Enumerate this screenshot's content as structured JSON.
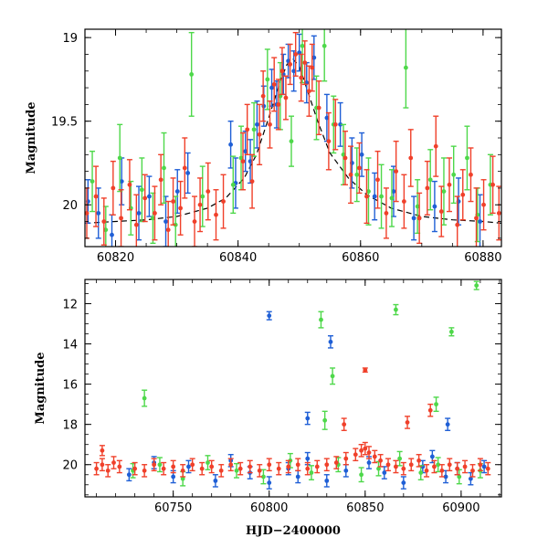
{
  "colors": {
    "blue": "#1f5fd6",
    "red": "#f0402a",
    "green": "#4ed84a",
    "model": "#000000"
  },
  "chart_data": [
    {
      "type": "scatter",
      "title": "",
      "xlabel": "",
      "ylabel": "Magnitude",
      "xlim": [
        60815,
        60883
      ],
      "ylim": [
        20.25,
        18.95
      ],
      "y_inverted": true,
      "xticks": [
        "60820",
        "60840",
        "60860",
        "60880"
      ],
      "yticks": [
        "19",
        "19.5",
        "20"
      ],
      "model_curve": {
        "style": "dashed",
        "x": [
          60815,
          60820,
          60825,
          60830,
          60835,
          60838,
          60841,
          60843,
          60845,
          60847,
          60848,
          60849,
          60850,
          60851,
          60853,
          60855,
          60858,
          60861,
          60865,
          60870,
          60875,
          60880,
          60883
        ],
        "y": [
          20.11,
          20.1,
          20.09,
          20.07,
          20.02,
          19.96,
          19.84,
          19.7,
          19.48,
          19.25,
          19.16,
          19.13,
          19.17,
          19.28,
          19.5,
          19.69,
          19.84,
          19.94,
          20.02,
          20.07,
          20.09,
          20.1,
          20.11
        ]
      },
      "series": [
        {
          "color": "blue",
          "x": [
            60815.5,
            60817.2,
            60819.4,
            60821.0,
            60823.8,
            60825.5,
            60828.2,
            60830.1,
            60831.8,
            60838.8,
            60839.6,
            60841.2,
            60842.0,
            60843.1,
            60844.2,
            60845.5,
            60846.3,
            60847.4,
            60848.2,
            60849.1,
            60850.0,
            60851.2,
            60852.4,
            60854.5,
            60856.7,
            60858.6,
            60860.2,
            60862.3,
            60865.4,
            60868.7,
            60872.1,
            60876.0,
            60879.5
          ],
          "y": [
            19.98,
            20.05,
            20.18,
            19.86,
            20.05,
            19.95,
            20.1,
            19.92,
            19.81,
            19.64,
            19.87,
            19.68,
            19.74,
            19.52,
            19.41,
            19.3,
            19.4,
            19.22,
            19.14,
            19.2,
            19.09,
            19.27,
            19.12,
            19.48,
            19.52,
            19.75,
            19.7,
            19.95,
            19.92,
            20.08,
            20.01,
            19.98,
            20.1
          ],
          "err": [
            0.13,
            0.15,
            0.12,
            0.14,
            0.16,
            0.12,
            0.15,
            0.13,
            0.12,
            0.14,
            0.15,
            0.12,
            0.13,
            0.14,
            0.12,
            0.11,
            0.14,
            0.12,
            0.1,
            0.12,
            0.11,
            0.12,
            0.13,
            0.14,
            0.13,
            0.15,
            0.13,
            0.14,
            0.15,
            0.13,
            0.15,
            0.14,
            0.16
          ]
        },
        {
          "color": "green",
          "x": [
            60816.2,
            60818.4,
            60820.7,
            60822.5,
            60824.3,
            60826.1,
            60827.9,
            60829.8,
            60832.4,
            60834.2,
            60839.2,
            60840.5,
            60842.6,
            60844.8,
            60846.9,
            60848.7,
            60850.5,
            60852.8,
            60854.1,
            60855.6,
            60857.2,
            60859.4,
            60861.3,
            60863.4,
            60865.1,
            60867.4,
            60869.3,
            60871.4,
            60873.6,
            60875.2,
            60877.4,
            60879.1,
            60881.2
          ],
          "y": [
            19.86,
            20.15,
            19.72,
            20.02,
            19.91,
            20.08,
            19.78,
            20.12,
            19.22,
            19.95,
            19.88,
            19.72,
            19.55,
            19.25,
            19.35,
            19.62,
            19.05,
            19.42,
            19.05,
            19.52,
            19.7,
            19.82,
            19.92,
            19.95,
            19.96,
            19.18,
            20.01,
            19.85,
            19.92,
            19.82,
            19.72,
            20.06,
            19.88
          ],
          "err": [
            0.18,
            0.14,
            0.2,
            0.16,
            0.19,
            0.15,
            0.21,
            0.17,
            0.25,
            0.18,
            0.17,
            0.19,
            0.16,
            0.18,
            0.2,
            0.15,
            0.22,
            0.19,
            0.21,
            0.17,
            0.18,
            0.16,
            0.2,
            0.19,
            0.17,
            0.24,
            0.16,
            0.18,
            0.2,
            0.17,
            0.19,
            0.16,
            0.18
          ]
        },
        {
          "color": "red",
          "x": [
            60815.3,
            60816.8,
            60818.1,
            60819.6,
            60820.9,
            60822.3,
            60823.4,
            60824.8,
            60826.4,
            60827.4,
            60828.6,
            60829.4,
            60830.6,
            60831.3,
            60832.9,
            60833.8,
            60835.1,
            60836.4,
            60837.6,
            60840.8,
            60841.5,
            60842.3,
            60843.5,
            60844.1,
            60845.2,
            60845.9,
            60846.6,
            60847.2,
            60847.8,
            60848.5,
            60849.4,
            60850.3,
            60850.9,
            60851.6,
            60852.1,
            60853.2,
            60854.8,
            60855.9,
            60857.5,
            60858.4,
            60859.8,
            60861.0,
            60862.8,
            60864.2,
            60865.8,
            60867.1,
            60868.2,
            60869.6,
            60870.9,
            60872.3,
            60873.2,
            60874.5,
            60875.8,
            60876.7,
            60878.0,
            60878.9,
            60880.1,
            60881.6,
            60882.6
          ],
          "y": [
            20.05,
            19.95,
            20.1,
            19.9,
            20.08,
            19.88,
            20.12,
            19.96,
            20.05,
            19.85,
            20.15,
            19.98,
            20.02,
            19.78,
            20.1,
            20.0,
            19.92,
            20.06,
            19.98,
            19.74,
            19.55,
            19.86,
            19.58,
            19.35,
            19.52,
            19.28,
            19.4,
            19.2,
            19.36,
            19.16,
            19.1,
            19.24,
            19.15,
            19.32,
            19.18,
            19.42,
            19.62,
            19.52,
            19.72,
            19.82,
            19.78,
            19.95,
            19.85,
            20.05,
            19.8,
            19.98,
            19.72,
            20.08,
            19.9,
            19.65,
            20.04,
            19.88,
            20.12,
            19.94,
            19.82,
            20.08,
            20.0,
            19.88,
            20.05
          ],
          "err": [
            0.15,
            0.18,
            0.14,
            0.16,
            0.17,
            0.15,
            0.18,
            0.14,
            0.16,
            0.15,
            0.17,
            0.14,
            0.16,
            0.18,
            0.15,
            0.16,
            0.17,
            0.15,
            0.16,
            0.17,
            0.15,
            0.16,
            0.18,
            0.15,
            0.14,
            0.16,
            0.15,
            0.14,
            0.13,
            0.12,
            0.13,
            0.14,
            0.13,
            0.15,
            0.14,
            0.16,
            0.17,
            0.15,
            0.16,
            0.17,
            0.15,
            0.16,
            0.17,
            0.15,
            0.18,
            0.16,
            0.17,
            0.15,
            0.16,
            0.18,
            0.15,
            0.16,
            0.17,
            0.15,
            0.16,
            0.18,
            0.15,
            0.17,
            0.16
          ]
        }
      ]
    },
    {
      "type": "scatter",
      "title": "",
      "xlabel": "HJD−2400000",
      "ylabel": "Magnitude",
      "xlim": [
        60704,
        60921
      ],
      "ylim": [
        21.6,
        10.8
      ],
      "y_inverted": true,
      "xticks": [
        "60750",
        "60800",
        "60850",
        "60900"
      ],
      "yticks": [
        "12",
        "14",
        "16",
        "18",
        "20"
      ],
      "series": [
        {
          "color": "blue",
          "x": [
            60727,
            60740,
            60750,
            60758,
            60772,
            60780,
            60790,
            60800,
            60810,
            60815,
            60820,
            60830,
            60840,
            60852,
            60860,
            60870,
            60880,
            60885,
            60892,
            60898,
            60905,
            60912,
            60800,
            60820,
            60832,
            60893
          ],
          "y": [
            20.5,
            19.9,
            20.6,
            20.1,
            20.8,
            19.8,
            20.4,
            20.9,
            20.2,
            20.6,
            19.7,
            20.8,
            20.3,
            19.9,
            20.4,
            20.9,
            20.1,
            19.6,
            20.6,
            20.2,
            20.7,
            20.1,
            12.6,
            17.7,
            13.9,
            18.0
          ],
          "err": [
            0.3,
            0.3,
            0.3,
            0.3,
            0.3,
            0.3,
            0.3,
            0.3,
            0.3,
            0.3,
            0.3,
            0.3,
            0.3,
            0.3,
            0.3,
            0.3,
            0.3,
            0.3,
            0.3,
            0.3,
            0.3,
            0.3,
            0.2,
            0.3,
            0.3,
            0.3
          ]
        },
        {
          "color": "green",
          "x": [
            60729,
            60743,
            60755,
            60768,
            60783,
            60797,
            60811,
            60822,
            60836,
            60848,
            60857,
            60868,
            60879,
            60888,
            60899,
            60910,
            60735,
            60827,
            60829,
            60833,
            60866,
            60887,
            60895,
            60908
          ],
          "y": [
            20.3,
            20.0,
            20.7,
            19.9,
            20.3,
            20.6,
            19.8,
            20.4,
            20.0,
            20.5,
            20.2,
            19.7,
            20.4,
            20.0,
            20.6,
            20.3,
            16.7,
            12.8,
            17.8,
            15.6,
            12.3,
            17.0,
            13.4,
            11.1
          ],
          "err": [
            0.35,
            0.35,
            0.35,
            0.35,
            0.35,
            0.35,
            0.35,
            0.35,
            0.35,
            0.35,
            0.35,
            0.35,
            0.35,
            0.35,
            0.35,
            0.35,
            0.4,
            0.4,
            0.45,
            0.4,
            0.25,
            0.35,
            0.2,
            0.2
          ]
        },
        {
          "color": "red",
          "x": [
            60710,
            60713,
            60716,
            60719,
            60722,
            60730,
            60735,
            60740,
            60745,
            60750,
            60755,
            60760,
            60765,
            60770,
            60775,
            60780,
            60785,
            60790,
            60795,
            60800,
            60805,
            60810,
            60815,
            60820,
            60825,
            60830,
            60835,
            60840,
            60845,
            60848,
            60850,
            60852,
            60855,
            60858,
            60862,
            60866,
            60870,
            60874,
            60878,
            60882,
            60886,
            60890,
            60894,
            60898,
            60902,
            60906,
            60910,
            60914,
            60713,
            60850,
            60839,
            60872,
            60884
          ],
          "y": [
            20.2,
            20.0,
            20.3,
            19.9,
            20.1,
            20.2,
            20.3,
            20.0,
            20.2,
            20.1,
            20.3,
            20.0,
            20.2,
            20.1,
            20.3,
            20.0,
            20.2,
            20.1,
            20.3,
            20.0,
            20.2,
            20.1,
            20.0,
            20.2,
            20.1,
            20.0,
            19.9,
            19.7,
            19.5,
            19.3,
            19.2,
            19.4,
            19.6,
            19.8,
            20.0,
            20.1,
            20.2,
            20.0,
            19.8,
            20.3,
            20.1,
            20.3,
            20.0,
            20.2,
            20.1,
            20.3,
            20.0,
            20.2,
            19.3,
            15.3,
            18.0,
            17.9,
            17.3
          ],
          "err": [
            0.3,
            0.3,
            0.3,
            0.3,
            0.3,
            0.3,
            0.3,
            0.3,
            0.3,
            0.3,
            0.3,
            0.3,
            0.3,
            0.3,
            0.3,
            0.3,
            0.3,
            0.3,
            0.3,
            0.3,
            0.3,
            0.3,
            0.3,
            0.3,
            0.3,
            0.3,
            0.3,
            0.3,
            0.3,
            0.3,
            0.3,
            0.3,
            0.3,
            0.3,
            0.3,
            0.3,
            0.3,
            0.3,
            0.3,
            0.3,
            0.3,
            0.3,
            0.3,
            0.3,
            0.3,
            0.3,
            0.3,
            0.3,
            0.25,
            0.1,
            0.3,
            0.3,
            0.3
          ]
        }
      ]
    }
  ]
}
